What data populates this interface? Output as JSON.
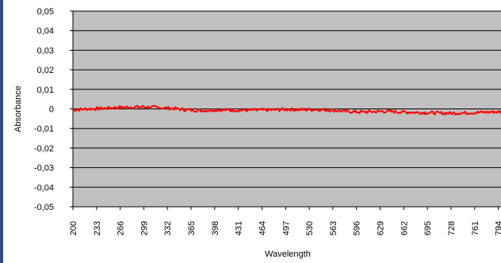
{
  "chart_data": {
    "type": "line",
    "title": "",
    "xlabel": "Wavelength",
    "ylabel": "Absorbance",
    "xlim": [
      200,
      800
    ],
    "ylim": [
      -0.05,
      0.05
    ],
    "grid": "horizontal",
    "legend": "none",
    "colors": {
      "plot_background": "#c0c0c0",
      "series": "#ff0000",
      "gridline": "#000000",
      "frame": "#2a4e8e"
    },
    "x_tick_labels": [
      "200",
      "233",
      "266",
      "299",
      "332",
      "365",
      "398",
      "431",
      "464",
      "497",
      "530",
      "563",
      "596",
      "629",
      "662",
      "695",
      "728",
      "761",
      "794"
    ],
    "y_tick_labels": [
      "0,05",
      "0,04",
      "0,03",
      "0,02",
      "0,01",
      "0",
      "-0,01",
      "-0,02",
      "-0,03",
      "-0,04",
      "-0,05"
    ],
    "series": [
      {
        "values_x": [
          200,
          220,
          240,
          260,
          280,
          300,
          320,
          340,
          360,
          380,
          400,
          420,
          440,
          460,
          480,
          500,
          520,
          540,
          560,
          580,
          600,
          620,
          640,
          660,
          680,
          700,
          720,
          740,
          760,
          780,
          800
        ],
        "values_y": [
          -0.0005,
          0.0,
          0.0002,
          0.0007,
          0.0009,
          0.001,
          0.0007,
          0.0002,
          -0.0005,
          -0.0008,
          -0.0005,
          -0.0006,
          -0.0007,
          -0.0006,
          -0.0005,
          -0.0002,
          -0.0004,
          -0.0003,
          -0.0006,
          -0.0012,
          -0.0016,
          -0.0014,
          -0.0012,
          -0.0016,
          -0.0018,
          -0.002,
          -0.0022,
          -0.0021,
          -0.0019,
          -0.0016,
          -0.0015
        ]
      }
    ]
  }
}
